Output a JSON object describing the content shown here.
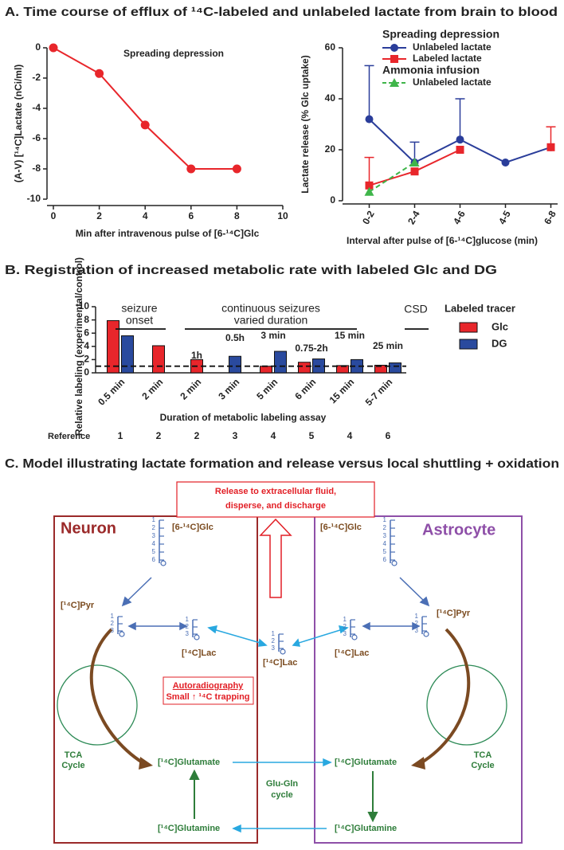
{
  "panel_titles": {
    "a": "A. Time course of efflux of ¹⁴C-labeled and unlabeled lactate from brain to blood",
    "b": "B. Registration of increased metabolic rate with labeled Glc and DG",
    "c": "C. Model illustrating lactate formation and release versus local shuttling + oxidation"
  },
  "chart_data": [
    {
      "type": "line",
      "xlabel": "Min after intravenous pulse of [6-¹⁴C]Glc",
      "ylabel": "(A-V) [¹⁴C]Lactate (nCi/ml)",
      "annotation": "Spreading depression",
      "x": [
        0,
        2,
        4,
        6,
        8
      ],
      "values": [
        0,
        -1.7,
        -5.1,
        -8,
        -8
      ],
      "color": "#e8262b",
      "xlim": [
        0,
        10
      ],
      "xticks": [
        0,
        2,
        4,
        6,
        8,
        10
      ],
      "ylim": [
        -10,
        0
      ],
      "yticks": [
        -10,
        -8,
        -6,
        -4,
        -2,
        0
      ]
    },
    {
      "type": "line",
      "xlabel": "Interval after pulse of [6-¹⁴C]glucose (min)",
      "ylabel": "Lactate release (% Glc uptake)",
      "categories": [
        "0-2",
        "2-4",
        "4-6",
        "4-5",
        "6-8"
      ],
      "legend_groups": [
        "Spreading depression",
        "Ammonia infusion"
      ],
      "series": [
        {
          "name": "Unlabeled lactate",
          "color": "#2a3d9a",
          "marker": "circle",
          "values": [
            32,
            15,
            24,
            15,
            21
          ],
          "errors": [
            21,
            8,
            16,
            null,
            null
          ]
        },
        {
          "name": "Labeled lactate",
          "color": "#e8262b",
          "marker": "square",
          "values": [
            6,
            11.5,
            20,
            null,
            21
          ],
          "errors": [
            11,
            null,
            null,
            null,
            8
          ]
        },
        {
          "name": "Unlabeled lactate",
          "color": "#3fb54a",
          "marker": "triangle",
          "dashed": true,
          "values": [
            3.5,
            15,
            null,
            null,
            null
          ],
          "errors": [
            null,
            null,
            null,
            null,
            null
          ]
        }
      ],
      "ylim": [
        0,
        60
      ],
      "yticks": [
        0,
        20,
        40,
        60
      ]
    },
    {
      "type": "bar",
      "xlabel": "Duration of metabolic labeling assay",
      "ylabel": "Relative labeling (experimental/control)",
      "categories": [
        "0.5 min",
        "2 min",
        "2 min",
        "3 min",
        "5 min",
        "6 min",
        "15 min",
        "5-7 min"
      ],
      "series": [
        {
          "name": "Glc",
          "color": "#e8262b",
          "values": [
            7.9,
            4.1,
            2.0,
            null,
            1.0,
            1.6,
            1.1,
            1.15
          ]
        },
        {
          "name": "DG",
          "color": "#2a4a9e",
          "values": [
            5.6,
            null,
            null,
            2.5,
            3.25,
            2.1,
            2.0,
            1.5
          ]
        }
      ],
      "legend_title": "Labeled tracer",
      "bar_notes": [
        null,
        null,
        "1h",
        "0.5h",
        "3 min",
        "0.75-2h",
        "15 min",
        "25 min"
      ],
      "groups": [
        [
          "seizure",
          "onset"
        ],
        [
          "continuous seizures",
          "varied duration"
        ],
        [
          "CSD"
        ]
      ],
      "reference_label": "Reference",
      "references": [
        1,
        2,
        2,
        3,
        4,
        5,
        4,
        6
      ],
      "reference_line": 1,
      "ylim": [
        0,
        10
      ],
      "yticks": [
        0,
        2,
        4,
        6,
        8,
        10
      ]
    }
  ],
  "diagram": {
    "neuron": "Neuron",
    "astrocyte": "Astrocyte",
    "release": [
      "Release to extracellular fluid,",
      "disperse, and discharge"
    ],
    "glc": "[6-¹⁴C]Glc",
    "pyr": "[¹⁴C]Pyr",
    "lac": "[¹⁴C]Lac",
    "glutamate": "[¹⁴C]Glutamate",
    "glutamine": "[¹⁴C]Glutamine",
    "tca": [
      "TCA",
      "Cycle"
    ],
    "glu_gln": [
      "Glu-Gln",
      "cycle"
    ],
    "autoradiography": "Autoradiography",
    "trapping": "Small ↑ ¹⁴C trapping",
    "carbon_numbers": [
      "1",
      "2",
      "3",
      "4",
      "5",
      "6"
    ]
  }
}
